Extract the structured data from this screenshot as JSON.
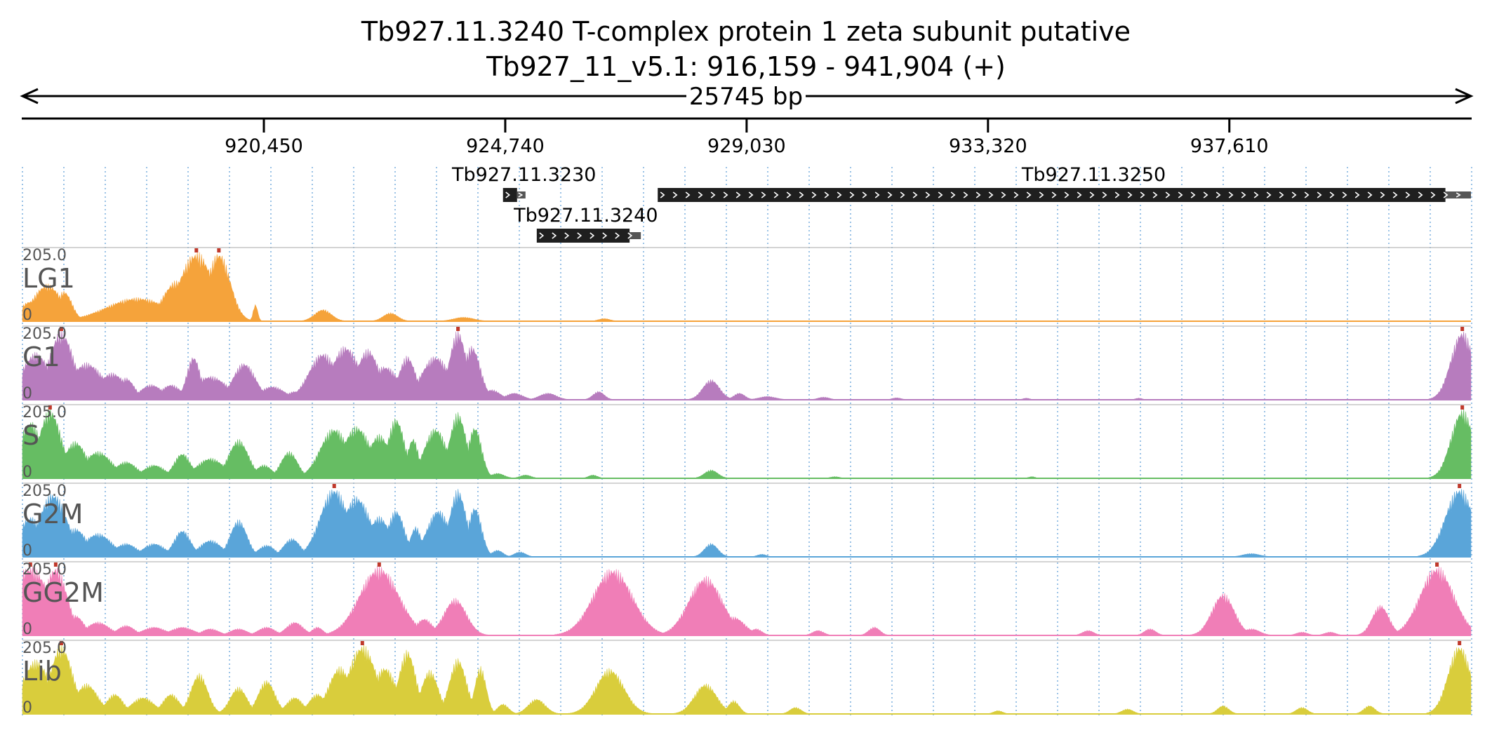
{
  "header": {
    "title": "Tb927.11.3240  T-complex protein 1  zeta subunit  putative",
    "location": "Tb927_11_v5.1: 916,159 - 941,904 (+)",
    "span_label": "25745 bp"
  },
  "region": {
    "start": 916159,
    "end": 941904
  },
  "axis": {
    "ticks": [
      {
        "value": 920450,
        "label": "920,450"
      },
      {
        "value": 924740,
        "label": "924,740"
      },
      {
        "value": 929030,
        "label": "929,030"
      },
      {
        "value": 933320,
        "label": "933,320"
      },
      {
        "value": 937610,
        "label": "937,610"
      }
    ]
  },
  "genes": [
    {
      "name": "Tb927.11.3230",
      "start": 924700,
      "end": 925100,
      "cds_end": 924950,
      "strand": "+",
      "row": 0
    },
    {
      "name": "Tb927.11.3240",
      "start": 925300,
      "end": 927150,
      "cds_end": 926950,
      "strand": "+",
      "row": 1
    },
    {
      "name": "Tb927.11.3250",
      "start": 927450,
      "end": 941904,
      "cds_end": 941450,
      "strand": "+",
      "row": 0
    }
  ],
  "chart_data": {
    "type": "area",
    "x_range": [
      916159,
      941904
    ],
    "y_max": 205.0,
    "y_max_label": "205.0",
    "y_min_label": "0",
    "tracks": [
      {
        "name": "LG1",
        "color": "#f5a33b",
        "peaks": [
          [
            916300,
            180,
            60
          ],
          [
            916600,
            260,
            110
          ],
          [
            916900,
            140,
            90
          ],
          [
            918200,
            550,
            70
          ],
          [
            918900,
            250,
            120
          ],
          [
            919250,
            300,
            205
          ],
          [
            919650,
            200,
            205
          ],
          [
            920300,
            40,
            50
          ],
          [
            921500,
            150,
            35
          ],
          [
            922700,
            130,
            25
          ],
          [
            924000,
            180,
            12
          ],
          [
            926500,
            100,
            8
          ]
        ]
      },
      {
        "name": "G1",
        "color": "#b77cbe",
        "peaks": [
          [
            916400,
            260,
            140
          ],
          [
            916850,
            220,
            205
          ],
          [
            917300,
            300,
            110
          ],
          [
            917750,
            250,
            80
          ],
          [
            918000,
            150,
            65
          ],
          [
            918450,
            200,
            45
          ],
          [
            918800,
            180,
            45
          ],
          [
            919200,
            120,
            130
          ],
          [
            919500,
            300,
            70
          ],
          [
            920100,
            200,
            110
          ],
          [
            920600,
            220,
            40
          ],
          [
            921000,
            150,
            25
          ],
          [
            921500,
            250,
            140
          ],
          [
            921900,
            250,
            160
          ],
          [
            922300,
            200,
            150
          ],
          [
            922600,
            250,
            100
          ],
          [
            923000,
            150,
            130
          ],
          [
            923500,
            250,
            130
          ],
          [
            923900,
            150,
            205
          ],
          [
            924150,
            150,
            160
          ],
          [
            924500,
            150,
            30
          ],
          [
            924900,
            150,
            20
          ],
          [
            925500,
            150,
            20
          ],
          [
            926400,
            100,
            25
          ],
          [
            928400,
            150,
            60
          ],
          [
            928900,
            100,
            20
          ],
          [
            929400,
            150,
            10
          ],
          [
            930400,
            100,
            8
          ],
          [
            931700,
            80,
            6
          ],
          [
            934000,
            60,
            5
          ],
          [
            936000,
            60,
            5
          ],
          [
            941750,
            200,
            205
          ]
        ]
      },
      {
        "name": "S",
        "color": "#66bd63",
        "peaks": [
          [
            916300,
            200,
            170
          ],
          [
            916650,
            200,
            205
          ],
          [
            917100,
            200,
            110
          ],
          [
            917500,
            250,
            80
          ],
          [
            918000,
            200,
            50
          ],
          [
            918500,
            200,
            40
          ],
          [
            919000,
            150,
            75
          ],
          [
            919500,
            250,
            60
          ],
          [
            920000,
            180,
            115
          ],
          [
            920450,
            150,
            40
          ],
          [
            920900,
            150,
            80
          ],
          [
            921400,
            150,
            45
          ],
          [
            921700,
            250,
            150
          ],
          [
            922100,
            250,
            155
          ],
          [
            922500,
            200,
            130
          ],
          [
            922800,
            150,
            180
          ],
          [
            923100,
            100,
            120
          ],
          [
            923500,
            200,
            150
          ],
          [
            923900,
            150,
            195
          ],
          [
            924200,
            120,
            155
          ],
          [
            924600,
            120,
            15
          ],
          [
            925100,
            100,
            10
          ],
          [
            926300,
            80,
            10
          ],
          [
            928400,
            120,
            25
          ],
          [
            930600,
            80,
            5
          ],
          [
            934100,
            60,
            5
          ],
          [
            941750,
            200,
            205
          ]
        ]
      },
      {
        "name": "G2M",
        "color": "#5aa5d9",
        "peaks": [
          [
            916300,
            200,
            120
          ],
          [
            916700,
            250,
            190
          ],
          [
            917100,
            200,
            85
          ],
          [
            917500,
            250,
            70
          ],
          [
            918000,
            200,
            40
          ],
          [
            918500,
            200,
            40
          ],
          [
            919000,
            150,
            80
          ],
          [
            919500,
            200,
            50
          ],
          [
            920000,
            150,
            110
          ],
          [
            920500,
            150,
            35
          ],
          [
            920950,
            150,
            55
          ],
          [
            921400,
            100,
            30
          ],
          [
            921700,
            250,
            205
          ],
          [
            922100,
            250,
            180
          ],
          [
            922500,
            200,
            120
          ],
          [
            922800,
            150,
            140
          ],
          [
            923150,
            100,
            90
          ],
          [
            923550,
            200,
            140
          ],
          [
            923900,
            150,
            200
          ],
          [
            924200,
            120,
            150
          ],
          [
            924600,
            100,
            20
          ],
          [
            925000,
            100,
            15
          ],
          [
            928400,
            120,
            40
          ],
          [
            929300,
            80,
            8
          ],
          [
            938000,
            150,
            10
          ],
          [
            941700,
            250,
            205
          ]
        ]
      },
      {
        "name": "GG2M",
        "color": "#f07eb7",
        "peaks": [
          [
            916300,
            350,
            205
          ],
          [
            916750,
            200,
            205
          ],
          [
            917100,
            150,
            60
          ],
          [
            917500,
            200,
            40
          ],
          [
            918000,
            150,
            30
          ],
          [
            918500,
            200,
            25
          ],
          [
            919000,
            200,
            25
          ],
          [
            919500,
            150,
            20
          ],
          [
            920000,
            150,
            20
          ],
          [
            920500,
            150,
            25
          ],
          [
            921000,
            150,
            40
          ],
          [
            921400,
            100,
            25
          ],
          [
            922500,
            350,
            205
          ],
          [
            922950,
            150,
            60
          ],
          [
            923300,
            150,
            50
          ],
          [
            923850,
            200,
            110
          ],
          [
            926650,
            350,
            200
          ],
          [
            927200,
            100,
            15
          ],
          [
            928300,
            300,
            175
          ],
          [
            928800,
            200,
            55
          ],
          [
            929200,
            100,
            20
          ],
          [
            930300,
            100,
            15
          ],
          [
            931300,
            100,
            25
          ],
          [
            935100,
            100,
            15
          ],
          [
            936200,
            100,
            20
          ],
          [
            937500,
            200,
            125
          ],
          [
            938000,
            150,
            20
          ],
          [
            938900,
            100,
            10
          ],
          [
            939400,
            100,
            10
          ],
          [
            940300,
            150,
            90
          ],
          [
            941300,
            300,
            205
          ]
        ]
      },
      {
        "name": "Lib",
        "color": "#d9cd3c",
        "peaks": [
          [
            916400,
            250,
            160
          ],
          [
            916850,
            200,
            205
          ],
          [
            917300,
            200,
            90
          ],
          [
            917800,
            150,
            60
          ],
          [
            918300,
            200,
            50
          ],
          [
            918800,
            150,
            60
          ],
          [
            919300,
            150,
            120
          ],
          [
            920000,
            150,
            80
          ],
          [
            920500,
            150,
            100
          ],
          [
            921000,
            150,
            50
          ],
          [
            921400,
            150,
            60
          ],
          [
            921800,
            200,
            140
          ],
          [
            922200,
            250,
            205
          ],
          [
            922600,
            200,
            140
          ],
          [
            923000,
            150,
            190
          ],
          [
            923400,
            150,
            130
          ],
          [
            923900,
            150,
            165
          ],
          [
            924300,
            100,
            140
          ],
          [
            924700,
            100,
            30
          ],
          [
            925300,
            150,
            45
          ],
          [
            926600,
            250,
            135
          ],
          [
            928300,
            200,
            90
          ],
          [
            928800,
            100,
            40
          ],
          [
            929900,
            100,
            20
          ],
          [
            933500,
            80,
            10
          ],
          [
            935800,
            100,
            15
          ],
          [
            937500,
            100,
            25
          ],
          [
            938900,
            100,
            20
          ],
          [
            940100,
            100,
            25
          ],
          [
            941700,
            200,
            205
          ]
        ]
      }
    ]
  }
}
